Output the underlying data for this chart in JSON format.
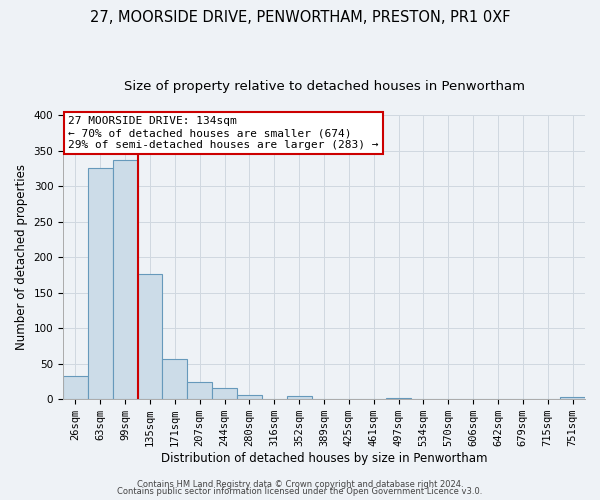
{
  "title": "27, MOORSIDE DRIVE, PENWORTHAM, PRESTON, PR1 0XF",
  "subtitle": "Size of property relative to detached houses in Penwortham",
  "xlabel": "Distribution of detached houses by size in Penwortham",
  "ylabel": "Number of detached properties",
  "bar_labels": [
    "26sqm",
    "63sqm",
    "99sqm",
    "135sqm",
    "171sqm",
    "207sqm",
    "244sqm",
    "280sqm",
    "316sqm",
    "352sqm",
    "389sqm",
    "425sqm",
    "461sqm",
    "497sqm",
    "534sqm",
    "570sqm",
    "606sqm",
    "642sqm",
    "679sqm",
    "715sqm",
    "751sqm"
  ],
  "bar_values": [
    33,
    325,
    337,
    176,
    57,
    24,
    16,
    6,
    0,
    4,
    0,
    0,
    0,
    2,
    0,
    0,
    0,
    0,
    0,
    0,
    3
  ],
  "bar_color": "#ccdce8",
  "bar_edge_color": "#6699bb",
  "vline_color": "#cc0000",
  "ylim": [
    0,
    400
  ],
  "yticks": [
    0,
    50,
    100,
    150,
    200,
    250,
    300,
    350,
    400
  ],
  "annotation_title": "27 MOORSIDE DRIVE: 134sqm",
  "annotation_line1": "← 70% of detached houses are smaller (674)",
  "annotation_line2": "29% of semi-detached houses are larger (283) →",
  "annotation_box_facecolor": "#ffffff",
  "annotation_box_edgecolor": "#cc0000",
  "footer1": "Contains HM Land Registry data © Crown copyright and database right 2024.",
  "footer2": "Contains public sector information licensed under the Open Government Licence v3.0.",
  "grid_color": "#d0d8e0",
  "bg_color": "#eef2f6",
  "title_fontsize": 10.5,
  "subtitle_fontsize": 9.5,
  "axis_label_fontsize": 8.5,
  "tick_fontsize": 7.5,
  "annotation_fontsize": 8,
  "footer_fontsize": 6
}
